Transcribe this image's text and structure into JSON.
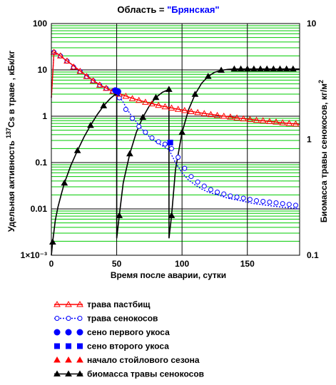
{
  "chart_data": {
    "type": "line",
    "title_prefix": "Область = ",
    "title_value": "\"Брянская\"",
    "colors": {
      "title_value": "#0000ff",
      "grid": "#00cc00",
      "pasture": "#ff0000",
      "hay_grass": "#0000ff",
      "hay_cut1": "#0000ff",
      "hay_cut2": "#0000ff",
      "stall_season": "#ff0000",
      "biomass": "#000000"
    },
    "xlabel": "Время после аварии, сутки",
    "ylabel_left_pre": "Удельная активность",
    "ylabel_left_sup": "137",
    "ylabel_left_post": "Cs в траве , кБк/кг",
    "ylabel_right_pre": "Биомасса травы сенокосов, кг/м",
    "ylabel_right_sup": "2",
    "xlim": [
      0,
      190
    ],
    "ylim_left": [
      0.001,
      100
    ],
    "ylim_right": [
      0.1,
      10
    ],
    "y_scale": "log",
    "grid": true,
    "x_ticks": [
      "0",
      "50",
      "100",
      "150"
    ],
    "y_ticks_left": [
      "1×10⁻³",
      "0.01",
      "0.1",
      "1",
      "10",
      "100"
    ],
    "y_ticks_right": [
      "0.1",
      "1",
      "10"
    ],
    "series": [
      {
        "name": "трава пастбищ",
        "key": "pasture",
        "marker": "open-triangle",
        "axis": "left",
        "x": [
          0,
          2,
          4,
          6,
          8,
          10,
          15,
          20,
          25,
          30,
          35,
          40,
          45,
          50,
          55,
          60,
          65,
          70,
          75,
          80,
          85,
          90,
          95,
          100,
          105,
          110,
          115,
          120,
          125,
          130,
          135,
          140,
          145,
          150,
          155,
          160,
          165,
          170,
          175,
          180,
          185,
          190
        ],
        "y": [
          2.5,
          24,
          23,
          21,
          19,
          17,
          13.5,
          10.5,
          8.2,
          6.5,
          5.2,
          4.3,
          3.7,
          3.2,
          2.85,
          2.55,
          2.3,
          2.1,
          1.93,
          1.78,
          1.65,
          1.55,
          1.45,
          1.37,
          1.3,
          1.23,
          1.17,
          1.12,
          1.07,
          1.02,
          0.98,
          0.94,
          0.9,
          0.87,
          0.84,
          0.81,
          0.78,
          0.76,
          0.73,
          0.71,
          0.69,
          0.67
        ],
        "marker_x": [
          2,
          7,
          12,
          17,
          22,
          27,
          32,
          37,
          42,
          47,
          52,
          57,
          62,
          67,
          72,
          77,
          82,
          87,
          92,
          97,
          102,
          107,
          112,
          117,
          122,
          127,
          132,
          137,
          142,
          147,
          152,
          157,
          162,
          167,
          172,
          177,
          182,
          187
        ],
        "marker_y": [
          24,
          20,
          15.5,
          11.5,
          9.3,
          7.2,
          5.8,
          4.7,
          4.0,
          3.45,
          3.0,
          2.7,
          2.4,
          2.2,
          2.0,
          1.85,
          1.72,
          1.6,
          1.5,
          1.41,
          1.33,
          1.26,
          1.2,
          1.14,
          1.09,
          1.04,
          1.0,
          0.96,
          0.92,
          0.88,
          0.85,
          0.82,
          0.8,
          0.77,
          0.75,
          0.72,
          0.7,
          0.68
        ]
      },
      {
        "name": "трава сенокосов",
        "key": "hay_grass",
        "marker": "open-circle",
        "axis": "left",
        "x": [
          0,
          2,
          4,
          6,
          8,
          10,
          15,
          20,
          25,
          30,
          35,
          40,
          45,
          50,
          55,
          60,
          65,
          70,
          75,
          80,
          85,
          90,
          95,
          100,
          105,
          110,
          115,
          120,
          125,
          130,
          135,
          140,
          145,
          150,
          155,
          160,
          165,
          170,
          175,
          180,
          185,
          190
        ],
        "y": [
          2.5,
          24,
          23,
          21,
          19,
          17,
          13.5,
          10.5,
          8.2,
          6.5,
          5.2,
          4.3,
          3.7,
          3.2,
          2.0,
          1.15,
          0.75,
          0.5,
          0.36,
          0.28,
          0.23,
          0.19,
          0.1,
          0.06,
          0.042,
          0.033,
          0.027,
          0.023,
          0.021,
          0.019,
          0.017,
          0.016,
          0.015,
          0.014,
          0.013,
          0.0125,
          0.012,
          0.0115,
          0.011,
          0.0107,
          0.0104,
          0.01
        ],
        "marker_x": [
          2,
          7,
          12,
          17,
          22,
          27,
          32,
          37,
          42,
          47,
          52,
          57,
          62,
          67,
          72,
          77,
          82,
          87,
          92,
          97,
          102,
          107,
          112,
          117,
          122,
          127,
          132,
          137,
          142,
          147,
          152,
          157,
          162,
          167,
          172,
          177,
          182,
          187
        ],
        "marker_y": [
          24,
          20,
          15.5,
          11.5,
          9.3,
          7.2,
          5.8,
          4.7,
          4.0,
          3.45,
          2.5,
          1.4,
          0.9,
          0.6,
          0.45,
          0.34,
          0.28,
          0.25,
          0.2,
          0.13,
          0.075,
          0.05,
          0.038,
          0.031,
          0.026,
          0.023,
          0.021,
          0.019,
          0.018,
          0.017,
          0.016,
          0.015,
          0.0145,
          0.014,
          0.0135,
          0.013,
          0.0125,
          0.012
        ]
      },
      {
        "name": "сено первого укоса",
        "key": "hay_cut1",
        "marker": "filled-circle",
        "axis": "left",
        "x": [
          49,
          50,
          51
        ],
        "y": [
          3.6,
          3.5,
          3.4
        ]
      },
      {
        "name": "сено второго укоса",
        "key": "hay_cut2",
        "marker": "filled-square",
        "axis": "left",
        "x": [
          91
        ],
        "y": [
          0.27
        ]
      },
      {
        "name": "начало стойлового сезона",
        "key": "stall_season",
        "marker": "filled-triangle",
        "axis": "left",
        "x": [],
        "y": []
      },
      {
        "name": "биомасса травы сенокосов",
        "key": "biomass",
        "marker": "filled-triangle",
        "axis": "right",
        "x": [
          0,
          1,
          3,
          5,
          8,
          10,
          15,
          20,
          25,
          30,
          35,
          40,
          45,
          50,
          50.01,
          52,
          55,
          60,
          65,
          70,
          75,
          80,
          85,
          90,
          90.01,
          92,
          95,
          100,
          105,
          110,
          115,
          120,
          125,
          130,
          135,
          140,
          145,
          150,
          155,
          160,
          165,
          170,
          175,
          180,
          185,
          190
        ],
        "y": [
          0.1,
          0.13,
          0.2,
          0.26,
          0.35,
          0.42,
          0.6,
          0.8,
          1.05,
          1.32,
          1.63,
          1.95,
          2.25,
          2.5,
          0.14,
          0.22,
          0.42,
          0.75,
          1.15,
          1.55,
          1.95,
          2.3,
          2.55,
          2.7,
          0.14,
          0.22,
          0.55,
          1.15,
          1.8,
          2.45,
          3.05,
          3.5,
          3.8,
          3.95,
          4.02,
          4.05,
          4.05,
          4.05,
          4.05,
          4.05,
          4.05,
          4.05,
          4.05,
          4.05,
          4.05,
          4.05
        ],
        "marker_x": [
          1,
          10,
          20,
          30,
          40,
          50,
          52,
          60,
          70,
          80,
          90,
          92,
          100,
          110,
          120,
          130,
          140,
          145,
          150,
          155,
          160,
          165,
          170,
          175,
          180,
          185
        ],
        "marker_y": [
          0.13,
          0.42,
          0.8,
          1.32,
          1.95,
          2.5,
          0.22,
          0.75,
          1.55,
          2.3,
          2.7,
          0.22,
          1.15,
          2.45,
          3.5,
          3.95,
          4.05,
          4.05,
          4.05,
          4.05,
          4.05,
          4.05,
          4.05,
          4.05,
          4.05,
          4.05
        ]
      }
    ],
    "legend": [
      {
        "label": "трава пастбищ",
        "key": "pasture",
        "marker": "open-triangle",
        "line": true
      },
      {
        "label": "трава сенокосов",
        "key": "hay_grass",
        "marker": "open-circle",
        "line": true,
        "dash": true
      },
      {
        "label": " сено первого укоса",
        "key": "hay_cut1",
        "marker": "filled-circle",
        "line": false
      },
      {
        "label": "сено второго укоса",
        "key": "hay_cut2",
        "marker": "filled-square",
        "line": false
      },
      {
        "label": "начало стойлового сезона",
        "key": "stall_season",
        "marker": "filled-triangle",
        "line": false
      },
      {
        "label": "биомасса травы сенокосов",
        "key": "biomass",
        "marker": "filled-triangle",
        "line": true
      }
    ],
    "legend_placement": "bottom"
  }
}
